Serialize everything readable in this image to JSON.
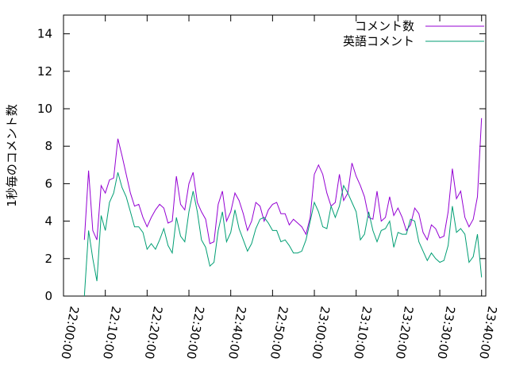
{
  "chart_data": {
    "type": "line",
    "ylabel": "1秒毎のコメント数",
    "x": [
      "22:05:00",
      "22:06:00",
      "22:07:00",
      "22:08:00",
      "22:09:00",
      "22:10:00",
      "22:11:00",
      "22:12:00",
      "22:13:00",
      "22:14:00",
      "22:15:00",
      "22:16:00",
      "22:17:00",
      "22:18:00",
      "22:19:00",
      "22:20:00",
      "22:21:00",
      "22:22:00",
      "22:23:00",
      "22:24:00",
      "22:25:00",
      "22:26:00",
      "22:27:00",
      "22:28:00",
      "22:29:00",
      "22:30:00",
      "22:31:00",
      "22:32:00",
      "22:33:00",
      "22:34:00",
      "22:35:00",
      "22:36:00",
      "22:37:00",
      "22:38:00",
      "22:39:00",
      "22:40:00",
      "22:41:00",
      "22:42:00",
      "22:43:00",
      "22:44:00",
      "22:45:00",
      "22:46:00",
      "22:47:00",
      "22:48:00",
      "22:49:00",
      "22:50:00",
      "22:51:00",
      "22:52:00",
      "22:53:00",
      "22:54:00",
      "22:55:00",
      "22:56:00",
      "22:57:00",
      "22:58:00",
      "22:59:00",
      "23:00:00",
      "23:01:00",
      "23:02:00",
      "23:03:00",
      "23:04:00",
      "23:05:00",
      "23:06:00",
      "23:07:00",
      "23:08:00",
      "23:09:00",
      "23:10:00",
      "23:11:00",
      "23:12:00",
      "23:13:00",
      "23:14:00",
      "23:15:00",
      "23:16:00",
      "23:17:00",
      "23:18:00",
      "23:19:00",
      "23:20:00",
      "23:21:00",
      "23:22:00",
      "23:23:00",
      "23:24:00",
      "23:25:00",
      "23:26:00",
      "23:27:00",
      "23:28:00",
      "23:29:00",
      "23:30:00",
      "23:31:00",
      "23:32:00",
      "23:33:00",
      "23:34:00",
      "23:35:00",
      "23:36:00",
      "23:37:00",
      "23:38:00",
      "23:39:00",
      "23:40:00"
    ],
    "series": [
      {
        "name": "コメント数",
        "color": "#9400d3",
        "values": [
          3.0,
          6.7,
          3.5,
          3.0,
          5.9,
          5.5,
          6.2,
          6.3,
          8.4,
          7.5,
          6.5,
          5.5,
          4.8,
          4.9,
          4.2,
          3.7,
          4.2,
          4.6,
          4.9,
          4.7,
          3.9,
          4.0,
          6.4,
          4.9,
          4.6,
          6.0,
          6.6,
          5.0,
          4.5,
          4.1,
          2.8,
          2.9,
          4.9,
          5.6,
          4.0,
          4.5,
          5.5,
          5.1,
          4.4,
          3.5,
          4.0,
          5.0,
          4.8,
          4.0,
          4.6,
          4.9,
          5.0,
          4.4,
          4.4,
          3.8,
          4.1,
          3.9,
          3.7,
          3.3,
          4.2,
          6.5,
          7.0,
          6.5,
          5.5,
          4.8,
          5.0,
          6.5,
          5.1,
          5.5,
          7.1,
          6.4,
          5.9,
          5.3,
          4.2,
          4.1,
          5.6,
          4.0,
          4.2,
          5.3,
          4.3,
          4.7,
          4.2,
          3.5,
          3.8,
          4.7,
          4.4,
          3.4,
          3.0,
          3.8,
          3.6,
          3.1,
          3.2,
          4.5,
          6.8,
          5.2,
          5.6,
          4.2,
          3.7,
          4.1,
          5.3,
          9.5
        ]
      },
      {
        "name": "英語コメント",
        "color": "#009e73",
        "values": [
          0,
          3.5,
          2.0,
          0.8,
          4.3,
          3.5,
          5.0,
          5.5,
          6.6,
          5.8,
          5.3,
          4.5,
          3.7,
          3.7,
          3.4,
          2.5,
          2.8,
          2.5,
          3.0,
          3.6,
          2.7,
          2.3,
          4.2,
          3.2,
          2.9,
          4.5,
          5.6,
          4.5,
          3.0,
          2.6,
          1.6,
          1.8,
          3.5,
          4.5,
          2.9,
          3.4,
          4.6,
          3.6,
          3.0,
          2.4,
          2.8,
          3.6,
          4.1,
          4.2,
          3.9,
          3.5,
          3.5,
          2.9,
          3.0,
          2.7,
          2.3,
          2.3,
          2.4,
          3.0,
          4.0,
          5.0,
          4.5,
          3.7,
          3.6,
          4.8,
          4.2,
          4.8,
          5.9,
          5.5,
          5.0,
          4.5,
          3.0,
          3.3,
          4.5,
          3.5,
          2.9,
          3.5,
          3.6,
          4.0,
          2.6,
          3.4,
          3.3,
          3.3,
          4.1,
          4.0,
          2.9,
          2.4,
          1.9,
          2.3,
          2.0,
          1.8,
          1.9,
          2.7,
          4.8,
          3.4,
          3.6,
          3.3,
          1.8,
          2.1,
          3.3,
          1.0
        ]
      }
    ],
    "xlim": [
      "22:00:00",
      "23:41:00"
    ],
    "xticks": [
      "22:00:00",
      "22:10:00",
      "22:20:00",
      "22:30:00",
      "22:40:00",
      "22:50:00",
      "23:00:00",
      "23:10:00",
      "23:20:00",
      "23:30:00",
      "23:40:00"
    ],
    "ylim": [
      0,
      15
    ],
    "yticks": [
      0,
      2,
      4,
      6,
      8,
      10,
      12,
      14
    ],
    "legend": "top-right"
  }
}
